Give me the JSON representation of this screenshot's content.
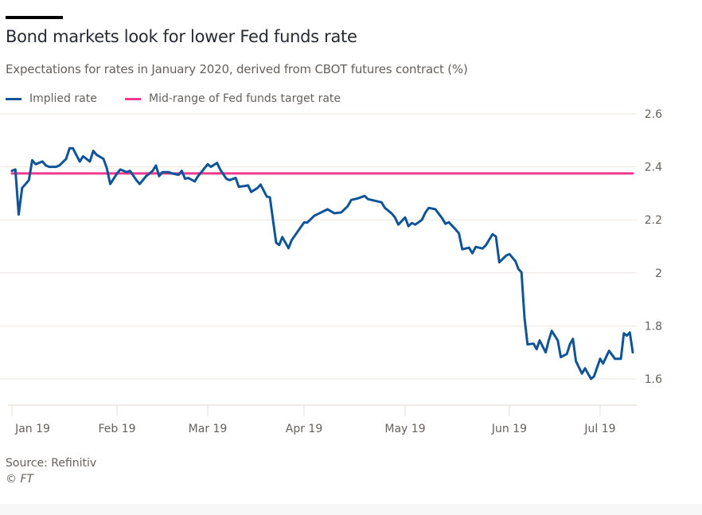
{
  "header": {
    "title": "Bond markets look for lower Fed funds rate",
    "subtitle": "Expectations for rates in January 2020, derived from CBOT futures contract (%)"
  },
  "legend": [
    {
      "label": "Implied rate",
      "color": "#0f5499"
    },
    {
      "label": "Mid-range of Fed funds target rate",
      "color": "#f2398f"
    }
  ],
  "footer": {
    "source": "Source: Refinitiv",
    "copyright": "© FT"
  },
  "chart_data": {
    "type": "line",
    "title": "Bond markets look for lower Fed funds rate",
    "subtitle": "Expectations for rates in January 2020, derived from CBOT futures contract (%)",
    "xlabel": "",
    "ylabel": "%",
    "ylim": [
      1.5,
      2.6
    ],
    "yticks": [
      1.6,
      1.8,
      2,
      2.2,
      2.4,
      2.6
    ],
    "ytick_labels": [
      "1.6",
      "1.8",
      "2",
      "2.2",
      "2.4",
      "2.6"
    ],
    "yaxis_side": "right",
    "grid": true,
    "legend_position": "top-left",
    "xlim": [
      "2019-01-01",
      "2019-07-12"
    ],
    "xticks": [
      "2019-01-01",
      "2019-02-01",
      "2019-03-01",
      "2019-04-01",
      "2019-05-01",
      "2019-06-01",
      "2019-07-01"
    ],
    "xtick_labels": [
      "Jan 19",
      "Feb 19",
      "Mar 19",
      "Apr 19",
      "May 19",
      "Jun 19",
      "Jul 19"
    ],
    "series": [
      {
        "name": "Implied rate",
        "color": "#0f5499",
        "points": [
          [
            "2019-01-01",
            2.385
          ],
          [
            "2019-01-02",
            2.39
          ],
          [
            "2019-01-03",
            2.22
          ],
          [
            "2019-01-04",
            2.32
          ],
          [
            "2019-01-06",
            2.35
          ],
          [
            "2019-01-07",
            2.425
          ],
          [
            "2019-01-08",
            2.41
          ],
          [
            "2019-01-10",
            2.42
          ],
          [
            "2019-01-11",
            2.405
          ],
          [
            "2019-01-12",
            2.4
          ],
          [
            "2019-01-14",
            2.4
          ],
          [
            "2019-01-15",
            2.405
          ],
          [
            "2019-01-17",
            2.43
          ],
          [
            "2019-01-18",
            2.47
          ],
          [
            "2019-01-19",
            2.47
          ],
          [
            "2019-01-21",
            2.42
          ],
          [
            "2019-01-22",
            2.44
          ],
          [
            "2019-01-24",
            2.42
          ],
          [
            "2019-01-25",
            2.46
          ],
          [
            "2019-01-26",
            2.445
          ],
          [
            "2019-01-28",
            2.43
          ],
          [
            "2019-01-29",
            2.395
          ],
          [
            "2019-01-30",
            2.335
          ],
          [
            "2019-02-01",
            2.375
          ],
          [
            "2019-02-02",
            2.39
          ],
          [
            "2019-02-04",
            2.38
          ],
          [
            "2019-02-05",
            2.385
          ],
          [
            "2019-02-07",
            2.35
          ],
          [
            "2019-02-08",
            2.335
          ],
          [
            "2019-02-10",
            2.365
          ],
          [
            "2019-02-12",
            2.385
          ],
          [
            "2019-02-13",
            2.405
          ],
          [
            "2019-02-14",
            2.365
          ],
          [
            "2019-02-15",
            2.38
          ],
          [
            "2019-02-17",
            2.38
          ],
          [
            "2019-02-18",
            2.375
          ],
          [
            "2019-02-20",
            2.37
          ],
          [
            "2019-02-21",
            2.385
          ],
          [
            "2019-02-22",
            2.355
          ],
          [
            "2019-02-23",
            2.358
          ],
          [
            "2019-02-25",
            2.345
          ],
          [
            "2019-02-26",
            2.365
          ],
          [
            "2019-02-27",
            2.38
          ],
          [
            "2019-03-01",
            2.41
          ],
          [
            "2019-03-02",
            2.4
          ],
          [
            "2019-03-04",
            2.415
          ],
          [
            "2019-03-05",
            2.39
          ],
          [
            "2019-03-07",
            2.355
          ],
          [
            "2019-03-08",
            2.35
          ],
          [
            "2019-03-10",
            2.358
          ],
          [
            "2019-03-11",
            2.325
          ],
          [
            "2019-03-13",
            2.328
          ],
          [
            "2019-03-14",
            2.33
          ],
          [
            "2019-03-15",
            2.305
          ],
          [
            "2019-03-17",
            2.32
          ],
          [
            "2019-03-18",
            2.333
          ],
          [
            "2019-03-20",
            2.288
          ],
          [
            "2019-03-21",
            2.285
          ],
          [
            "2019-03-23",
            2.114
          ],
          [
            "2019-03-24",
            2.105
          ],
          [
            "2019-03-25",
            2.135
          ],
          [
            "2019-03-27",
            2.093
          ],
          [
            "2019-03-28",
            2.123
          ],
          [
            "2019-04-01",
            2.19
          ],
          [
            "2019-04-02",
            2.19
          ],
          [
            "2019-04-04",
            2.215
          ],
          [
            "2019-04-08",
            2.24
          ],
          [
            "2019-04-10",
            2.225
          ],
          [
            "2019-04-12",
            2.228
          ],
          [
            "2019-04-14",
            2.252
          ],
          [
            "2019-04-15",
            2.275
          ],
          [
            "2019-04-17",
            2.281
          ],
          [
            "2019-04-19",
            2.29
          ],
          [
            "2019-04-20",
            2.278
          ],
          [
            "2019-04-22",
            2.272
          ],
          [
            "2019-04-24",
            2.266
          ],
          [
            "2019-04-25",
            2.245
          ],
          [
            "2019-04-27",
            2.224
          ],
          [
            "2019-04-28",
            2.209
          ],
          [
            "2019-04-29",
            2.182
          ],
          [
            "2019-05-01",
            2.209
          ],
          [
            "2019-05-02",
            2.176
          ],
          [
            "2019-05-03",
            2.188
          ],
          [
            "2019-05-04",
            2.182
          ],
          [
            "2019-05-06",
            2.2
          ],
          [
            "2019-05-07",
            2.227
          ],
          [
            "2019-05-08",
            2.245
          ],
          [
            "2019-05-10",
            2.24
          ],
          [
            "2019-05-12",
            2.206
          ],
          [
            "2019-05-13",
            2.185
          ],
          [
            "2019-05-14",
            2.191
          ],
          [
            "2019-05-16",
            2.164
          ],
          [
            "2019-05-17",
            2.149
          ],
          [
            "2019-05-18",
            2.089
          ],
          [
            "2019-05-20",
            2.095
          ],
          [
            "2019-05-21",
            2.074
          ],
          [
            "2019-05-22",
            2.098
          ],
          [
            "2019-05-24",
            2.092
          ],
          [
            "2019-05-25",
            2.104
          ],
          [
            "2019-05-27",
            2.146
          ],
          [
            "2019-05-28",
            2.137
          ],
          [
            "2019-05-29",
            2.04
          ],
          [
            "2019-05-31",
            2.065
          ],
          [
            "2019-06-01",
            2.071
          ],
          [
            "2019-06-03",
            2.044
          ],
          [
            "2019-06-04",
            2.014
          ],
          [
            "2019-06-05",
            2.002
          ],
          [
            "2019-06-06",
            1.83
          ],
          [
            "2019-06-07",
            1.73
          ],
          [
            "2019-06-09",
            1.733
          ],
          [
            "2019-06-10",
            1.712
          ],
          [
            "2019-06-11",
            1.745
          ],
          [
            "2019-06-13",
            1.7
          ],
          [
            "2019-06-14",
            1.745
          ],
          [
            "2019-06-15",
            1.781
          ],
          [
            "2019-06-17",
            1.745
          ],
          [
            "2019-06-18",
            1.682
          ],
          [
            "2019-06-20",
            1.694
          ],
          [
            "2019-06-21",
            1.73
          ],
          [
            "2019-06-22",
            1.751
          ],
          [
            "2019-06-23",
            1.667
          ],
          [
            "2019-06-25",
            1.62
          ],
          [
            "2019-06-26",
            1.64
          ],
          [
            "2019-06-28",
            1.6
          ],
          [
            "2019-06-29",
            1.61
          ],
          [
            "2019-07-01",
            1.676
          ],
          [
            "2019-07-02",
            1.658
          ],
          [
            "2019-07-03",
            1.682
          ],
          [
            "2019-07-04",
            1.706
          ],
          [
            "2019-07-06",
            1.676
          ],
          [
            "2019-07-08",
            1.676
          ],
          [
            "2019-07-09",
            1.772
          ],
          [
            "2019-07-10",
            1.763
          ],
          [
            "2019-07-11",
            1.775
          ],
          [
            "2019-07-12",
            1.7
          ]
        ]
      },
      {
        "name": "Mid-range of Fed funds target rate",
        "color": "#f2398f",
        "points": [
          [
            "2019-01-01",
            2.375
          ],
          [
            "2019-07-12",
            2.375
          ]
        ]
      }
    ]
  }
}
